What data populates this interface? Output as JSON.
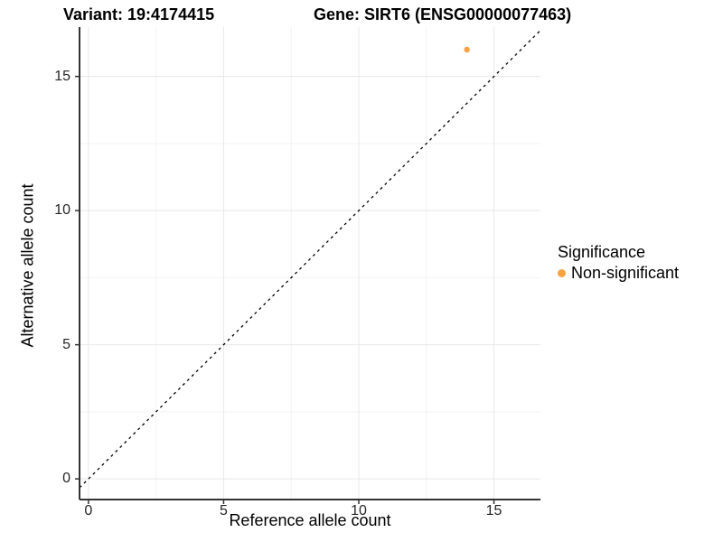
{
  "chart_data": {
    "type": "scatter",
    "title_variant": "Variant: 19:4174415",
    "title_gene": "Gene: SIRT6 (ENSG00000077463)",
    "xlabel": "Reference allele count",
    "ylabel": "Alternative allele count",
    "xlim": [
      -0.33,
      16.72
    ],
    "ylim": [
      -0.77,
      16.84
    ],
    "x_ticks": [
      0,
      5,
      10,
      15
    ],
    "y_ticks": [
      0,
      5,
      10,
      15
    ],
    "x_minor_ticks": [
      2.5,
      7.5,
      12.5
    ],
    "y_minor_ticks": [
      2.5,
      7.5,
      12.5
    ],
    "grid": "major and minor gridlines on, white background",
    "identity_line": {
      "slope": 1,
      "intercept": 0,
      "style": "dashed",
      "color": "#000000"
    },
    "series": [
      {
        "name": "Non-significant",
        "color": "#F9A242",
        "points": [
          {
            "x": 14,
            "y": 16
          }
        ]
      }
    ],
    "legend": {
      "title": "Significance",
      "position": "right",
      "items": [
        {
          "label": "Non-significant",
          "color": "#F9A242"
        }
      ]
    },
    "theme": {
      "background": "#FFFFFF",
      "grid_major_color": "#E8E8E8",
      "grid_minor_color": "#F3F3F3",
      "axis_line_color": "#333333",
      "tick_label_color": "#262626"
    }
  }
}
